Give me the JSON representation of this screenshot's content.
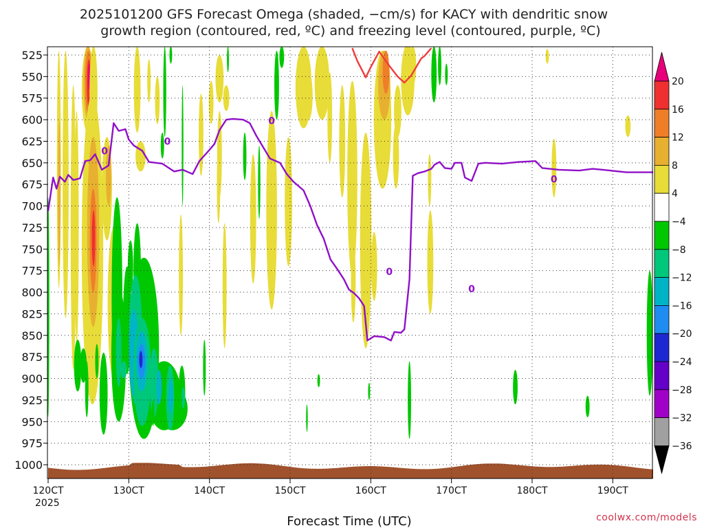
{
  "title_line1": "2025101200 GFS Forecast Omega (shaded, −cm/s) for KACY with dendritic snow",
  "title_line2": "growth region (contoured, red, ºC) and freezing level (contoured, purple, ºC)",
  "xlabel": "Forecast Time (UTC)",
  "x_year_label": "2025",
  "credit": "coolwx.com/models",
  "colorbar": {
    "labels": [
      "20",
      "16",
      "12",
      "8",
      "4",
      "−4",
      "−8",
      "−12",
      "−16",
      "−20",
      "−24",
      "−28",
      "−32",
      "−36"
    ],
    "colors": [
      "#e8007a",
      "#f03030",
      "#f07e28",
      "#e8b030",
      "#e8dc38",
      "#ffffff",
      "#00c800",
      "#00c87a",
      "#00b4c8",
      "#1e8cf0",
      "#1e28d2",
      "#6400c8",
      "#a000c8",
      "#a0a0a0",
      "#000000"
    ]
  },
  "chart_data": {
    "type": "heatmap",
    "title": "2025101200 GFS Forecast Omega (shaded, −cm/s) for KACY with dendritic snow growth region (contoured, red, ºC) and freezing level (contoured, purple, ºC)",
    "xlabel": "Forecast Time (UTC)",
    "ylabel": "",
    "x_ticks": [
      "120CT",
      "130CT",
      "140CT",
      "150CT",
      "160CT",
      "170CT",
      "180CT",
      "190CT"
    ],
    "y_ticks": [
      525,
      550,
      575,
      600,
      625,
      650,
      675,
      700,
      725,
      750,
      775,
      800,
      825,
      850,
      875,
      900,
      925,
      950,
      975,
      1000
    ],
    "x_range_hours": [
      0,
      180
    ],
    "y_range_hpa": [
      512,
      1008
    ],
    "grid": true,
    "freezing_level_label": "0",
    "freezing_level_hpa": [
      [
        0,
        706
      ],
      [
        1.5,
        667
      ],
      [
        2.5,
        680
      ],
      [
        3.5,
        666
      ],
      [
        5,
        672
      ],
      [
        6,
        664
      ],
      [
        7.5,
        670
      ],
      [
        9.5,
        668
      ],
      [
        11,
        648
      ],
      [
        12.5,
        647
      ],
      [
        14,
        640
      ],
      [
        16,
        658
      ],
      [
        18,
        653
      ],
      [
        19.5,
        604
      ],
      [
        21,
        613
      ],
      [
        23,
        611
      ],
      [
        24,
        623
      ],
      [
        25.5,
        630
      ],
      [
        28,
        636
      ],
      [
        30,
        649
      ],
      [
        34,
        651
      ],
      [
        37.5,
        660
      ],
      [
        40,
        658
      ],
      [
        43,
        663
      ],
      [
        45,
        648
      ],
      [
        48,
        635
      ],
      [
        49.5,
        628
      ],
      [
        51,
        612
      ],
      [
        53,
        600
      ],
      [
        55,
        599
      ],
      [
        58,
        600
      ],
      [
        60,
        604
      ],
      [
        62,
        619
      ],
      [
        66,
        645
      ],
      [
        69,
        650
      ],
      [
        71,
        663
      ],
      [
        73,
        672
      ],
      [
        76,
        682
      ],
      [
        78,
        700
      ],
      [
        80,
        722
      ],
      [
        82,
        738
      ],
      [
        84,
        762
      ],
      [
        86,
        773
      ],
      [
        88,
        785
      ],
      [
        89.5,
        797
      ],
      [
        91,
        801
      ],
      [
        92.5,
        807
      ],
      [
        94,
        816
      ],
      [
        95,
        856
      ],
      [
        97,
        851
      ],
      [
        100,
        852
      ],
      [
        102,
        856
      ],
      [
        103,
        846
      ],
      [
        105,
        847
      ],
      [
        106,
        843
      ],
      [
        107.5,
        785
      ],
      [
        108.5,
        665
      ],
      [
        110,
        662
      ],
      [
        112,
        660
      ],
      [
        114,
        657
      ],
      [
        115,
        652
      ],
      [
        116.5,
        649
      ],
      [
        118,
        656
      ],
      [
        120,
        657
      ],
      [
        121,
        650
      ],
      [
        123,
        650
      ],
      [
        124,
        667
      ],
      [
        126,
        671
      ],
      [
        128,
        651
      ],
      [
        130,
        650
      ],
      [
        135,
        651
      ],
      [
        140,
        649
      ],
      [
        145,
        648
      ],
      [
        147,
        656
      ],
      [
        152,
        658
      ],
      [
        158,
        659
      ],
      [
        162,
        657
      ],
      [
        165,
        658
      ],
      [
        172,
        661
      ],
      [
        180,
        661
      ]
    ],
    "dgz_contour_hpa": [
      [
        90.5,
        517
      ],
      [
        92,
        532
      ],
      [
        94.5,
        551
      ],
      [
        96,
        539
      ],
      [
        98.5,
        521
      ],
      [
        101,
        535
      ],
      [
        104,
        550
      ],
      [
        106,
        557
      ],
      [
        108,
        549
      ],
      [
        111,
        529
      ],
      [
        112,
        526
      ],
      [
        114,
        517
      ]
    ],
    "omega_colors": {
      "strong_rise_gt16": "#e8007a",
      "rise_12_16": "#f03030",
      "rise_8_12": "#f07e28",
      "rise_4_8": "#e8b030",
      "rise_0_4": "#e8dc38",
      "sink_4_8": "#00c800",
      "sink_8_12": "#00c87a",
      "sink_12_16": "#00b4c8",
      "sink_16_20": "#1e8cf0",
      "sink_20_24": "#1e28d2"
    },
    "terrain_color": "#a0522d"
  }
}
